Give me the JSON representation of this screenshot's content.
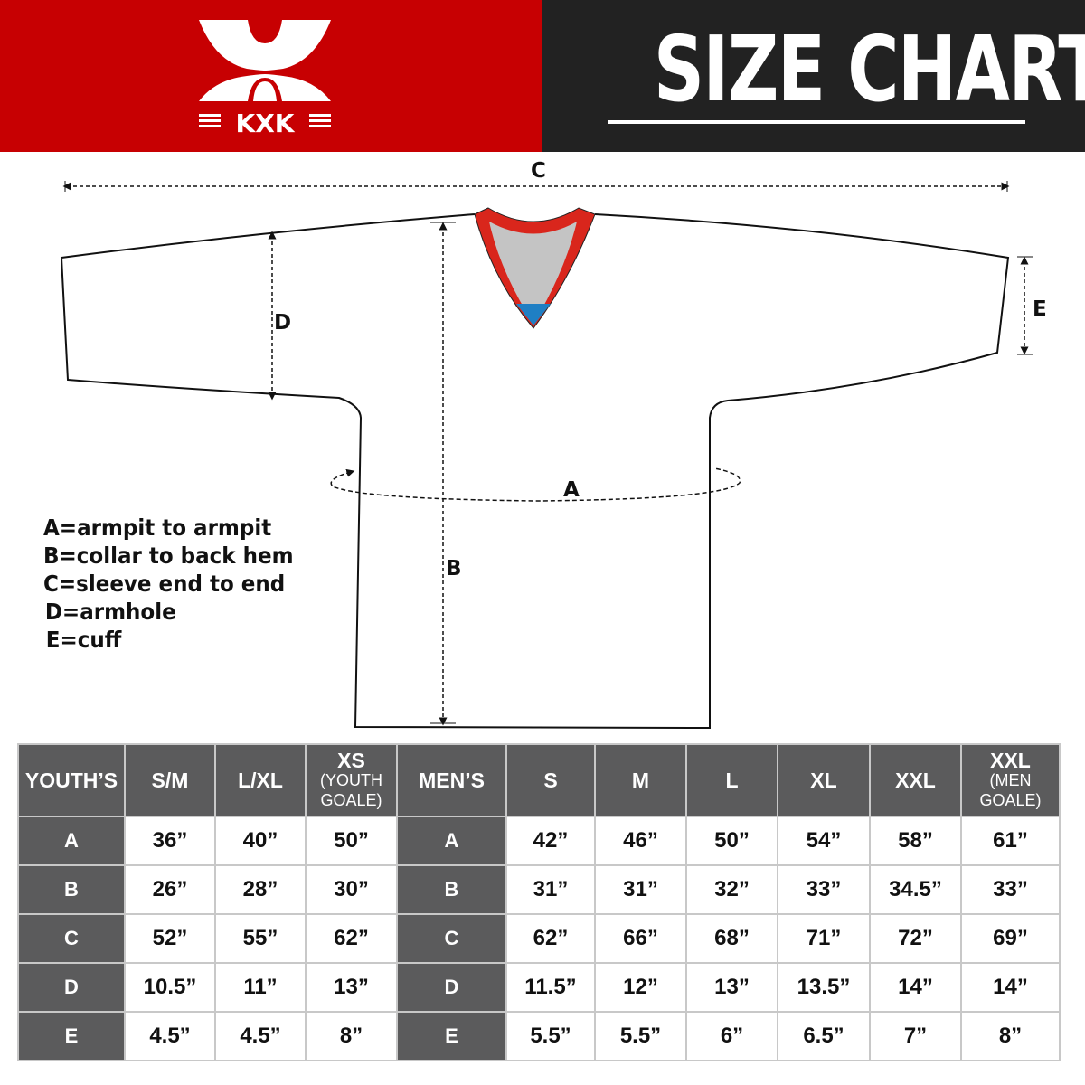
{
  "header": {
    "brand": "KXK",
    "title": "SIZE CHART",
    "colors": {
      "brand_red": "#c70002",
      "dark": "#222222",
      "table_header": "#5b5b5c"
    }
  },
  "diagram": {
    "labels": {
      "a": "A",
      "b": "B",
      "c": "C",
      "d": "D",
      "e": "E"
    },
    "legend": [
      "A=armpit to armpit",
      "B=collar to back hem",
      "C=sleeve end to end",
      "D=armhole",
      "E=cuff"
    ]
  },
  "table": {
    "youth_header": {
      "label": "YOUTH’S",
      "sizes": [
        {
          "main": "S/M",
          "sub": ""
        },
        {
          "main": "L/XL",
          "sub": ""
        },
        {
          "main": "XS",
          "sub": "(YOUTH GOALE)"
        }
      ]
    },
    "men_header": {
      "label": "MEN’S",
      "sizes": [
        {
          "main": "S",
          "sub": ""
        },
        {
          "main": "M",
          "sub": ""
        },
        {
          "main": "L",
          "sub": ""
        },
        {
          "main": "XL",
          "sub": ""
        },
        {
          "main": "XXL",
          "sub": ""
        },
        {
          "main": "XXL",
          "sub": "(MEN GOALE)"
        }
      ]
    },
    "rows": [
      {
        "label": "A",
        "youth": [
          "36”",
          "40”",
          "50”"
        ],
        "men": [
          "42”",
          "46”",
          "50”",
          "54”",
          "58”",
          "61”"
        ]
      },
      {
        "label": "B",
        "youth": [
          "26”",
          "28”",
          "30”"
        ],
        "men": [
          "31”",
          "31”",
          "32”",
          "33”",
          "34.5”",
          "33”"
        ]
      },
      {
        "label": "C",
        "youth": [
          "52”",
          "55”",
          "62”"
        ],
        "men": [
          "62”",
          "66”",
          "68”",
          "71”",
          "72”",
          "69”"
        ]
      },
      {
        "label": "D",
        "youth": [
          "10.5”",
          "11”",
          "13”"
        ],
        "men": [
          "11.5”",
          "12”",
          "13”",
          "13.5”",
          "14”",
          "14”"
        ]
      },
      {
        "label": "E",
        "youth": [
          "4.5”",
          "4.5”",
          "8”"
        ],
        "men": [
          "5.5”",
          "5.5”",
          "6”",
          "6.5”",
          "7”",
          "8”"
        ]
      }
    ]
  }
}
